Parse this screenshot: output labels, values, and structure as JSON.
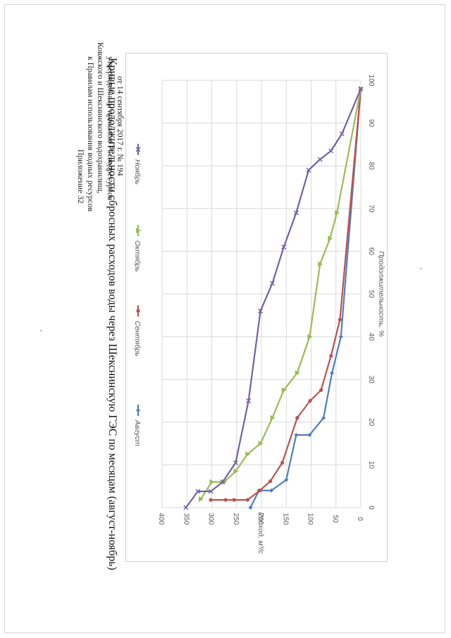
{
  "header": {
    "lines": [
      "Приложение 32",
      "к Правилам использования водных ресурсов",
      "Ковжского и Шекснинского водохранилищ,",
      "утвержденным приказом Росводресурсов",
      "от 14 сентября 2017 г. № 194"
    ]
  },
  "chart_data": {
    "type": "line",
    "title": "Кривые продолжительности сбросных расходов воды через Шекснинскую ГЭС по месяцам (август-ноябрь)",
    "xlabel": "Продолжительность, %",
    "ylabel": "Расход, м³/с",
    "xlim": [
      0,
      100
    ],
    "ylim": [
      0,
      400
    ],
    "x_ticks": [
      0,
      10,
      20,
      30,
      40,
      50,
      60,
      70,
      80,
      90,
      100
    ],
    "y_ticks": [
      0,
      50,
      100,
      150,
      200,
      250,
      300,
      350,
      400
    ],
    "grid": true,
    "legend_position": "top",
    "series": [
      {
        "name": "Август",
        "color": "#4f7ebd",
        "marker": "diamond",
        "points": [
          [
            0,
            222
          ],
          [
            4,
            205
          ],
          [
            4,
            180
          ],
          [
            6.5,
            150
          ],
          [
            17,
            130
          ],
          [
            17,
            103
          ],
          [
            21,
            75
          ],
          [
            31.5,
            58
          ],
          [
            40,
            40
          ],
          [
            98,
            0
          ]
        ]
      },
      {
        "name": "Сентябрь",
        "color": "#c0504d",
        "marker": "circle",
        "points": [
          [
            1.8,
            302
          ],
          [
            1.8,
            272
          ],
          [
            1.8,
            255
          ],
          [
            1.8,
            228
          ],
          [
            4,
            203
          ],
          [
            6.2,
            182
          ],
          [
            10.5,
            158
          ],
          [
            21,
            128
          ],
          [
            25,
            102
          ],
          [
            27.5,
            80
          ],
          [
            35.5,
            60
          ],
          [
            44,
            42
          ],
          [
            98,
            0
          ]
        ]
      },
      {
        "name": "Октябрь",
        "color": "#9bbb59",
        "marker": "triangle",
        "points": [
          [
            2,
            322
          ],
          [
            6,
            300
          ],
          [
            6,
            275
          ],
          [
            8.5,
            252
          ],
          [
            12.5,
            228
          ],
          [
            15,
            202
          ],
          [
            21,
            178
          ],
          [
            27.5,
            155
          ],
          [
            31.5,
            128
          ],
          [
            40,
            103
          ],
          [
            57,
            82
          ],
          [
            63,
            62
          ],
          [
            69,
            48
          ],
          [
            98,
            0
          ]
        ]
      },
      {
        "name": "Ноябрь",
        "color": "#7560a2",
        "marker": "cross",
        "points": [
          [
            0,
            352
          ],
          [
            3.8,
            328
          ],
          [
            3.8,
            302
          ],
          [
            6,
            278
          ],
          [
            10.5,
            252
          ],
          [
            25,
            226
          ],
          [
            46,
            202
          ],
          [
            52.5,
            178
          ],
          [
            61,
            155
          ],
          [
            69,
            130
          ],
          [
            79,
            105
          ],
          [
            81.5,
            82
          ],
          [
            83.5,
            60
          ],
          [
            87.5,
            38
          ],
          [
            98,
            0
          ]
        ]
      }
    ]
  }
}
